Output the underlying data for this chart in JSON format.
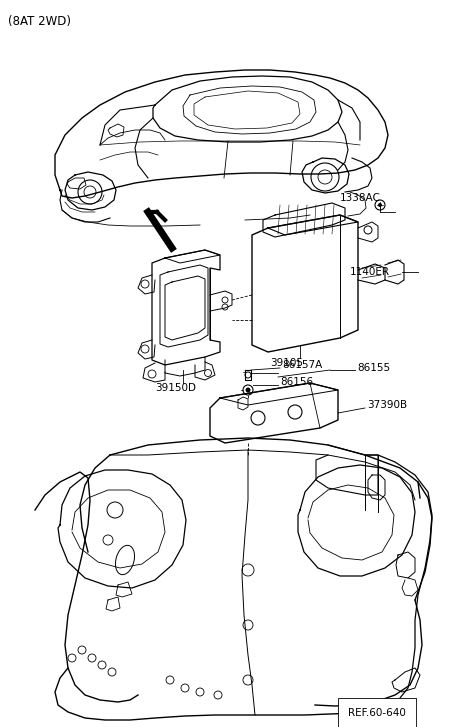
{
  "title": "(8AT 2WD)",
  "bg_color": "#ffffff",
  "label_color": "#000000",
  "line_color": "#000000",
  "ref_label": "REF.60-640",
  "parts": {
    "bracket_label": "39150D",
    "ecu_label": "39105",
    "screw1_label": "1338AC",
    "screw2_label": "1140ER",
    "bolt1_label": "86157A",
    "bolt2_label": "86156",
    "cover_label": "86155",
    "plate_label": "37390B"
  },
  "figsize": [
    4.68,
    7.27
  ],
  "dpi": 100
}
